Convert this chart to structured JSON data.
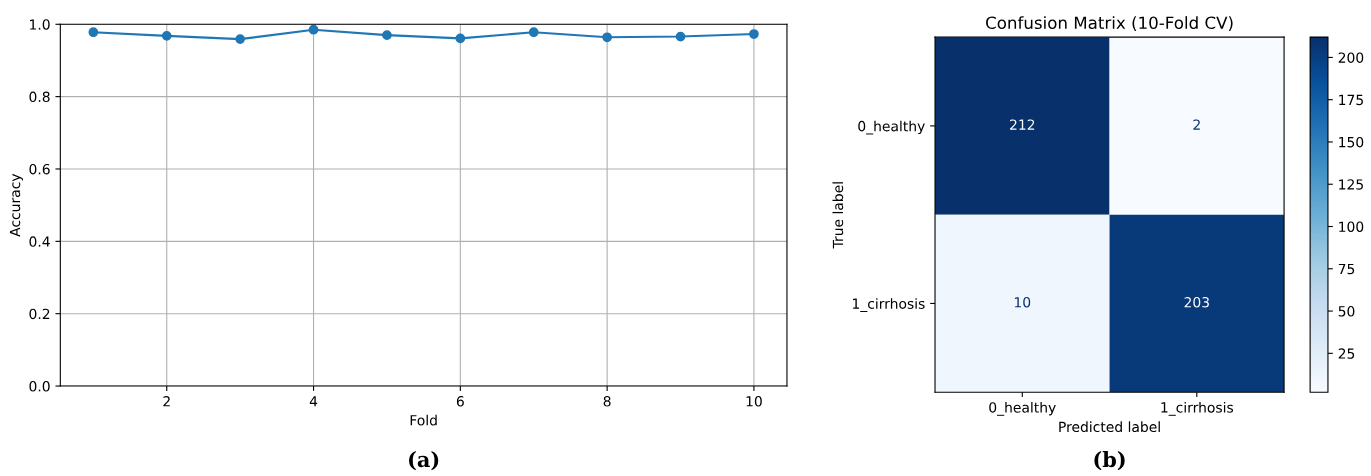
{
  "chart_data": [
    {
      "type": "line",
      "xlabel": "Fold",
      "ylabel": "Accuracy",
      "x": [
        1,
        2,
        3,
        4,
        5,
        6,
        7,
        8,
        9,
        10
      ],
      "series": [
        {
          "color": "#1f77b4",
          "values": [
            0.978,
            0.968,
            0.959,
            0.985,
            0.97,
            0.961,
            0.978,
            0.964,
            0.966,
            0.973
          ]
        }
      ],
      "xlim": [
        0.55,
        10.45
      ],
      "xticks": [
        2,
        4,
        6,
        8,
        10
      ],
      "ylim": [
        0,
        1.0
      ],
      "yticks": [
        {
          "value": 0,
          "label": "0.0"
        },
        0.2,
        0.4,
        0.6,
        0.8,
        {
          "value": 1,
          "label": "1.0"
        }
      ],
      "grid": true,
      "marker": "circle",
      "line_style": "solid",
      "annotations": [
        "(a)"
      ]
    },
    {
      "type": "heatmap",
      "title": "Confusion Matrix (10-Fold CV)",
      "xlabel": "Predicted label",
      "ylabel": "True label",
      "categories": [
        "0_healthy",
        "1_cirrhosis"
      ],
      "y_categories": [
        "0_healthy",
        "1_cirrhosis"
      ],
      "cells": [
        [
          212,
          2
        ],
        [
          10,
          203
        ]
      ],
      "data_labels": true,
      "clim": [
        2,
        212
      ],
      "cticks": [
        25,
        50,
        75,
        100,
        125,
        150,
        175,
        200
      ],
      "annotations": [
        "(b)"
      ]
    }
  ]
}
